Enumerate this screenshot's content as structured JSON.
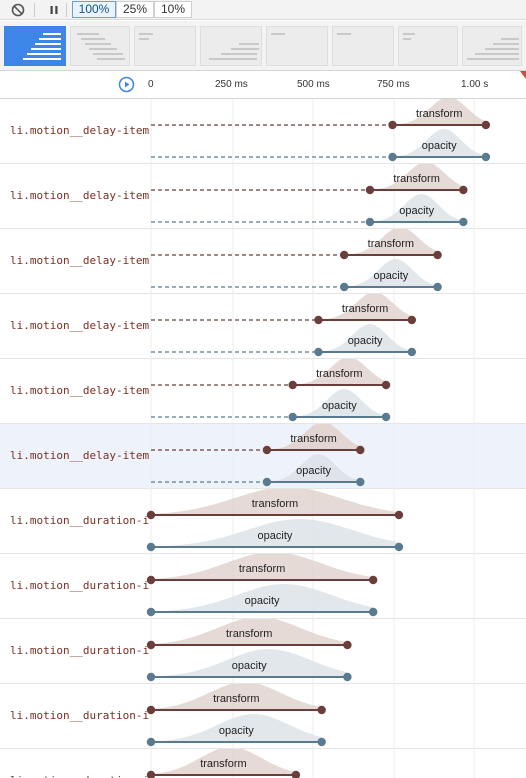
{
  "toolbar": {
    "clear_icon": "clear-icon",
    "pause_icon": "pause-icon",
    "speeds": [
      "100%",
      "25%",
      "10%"
    ],
    "selected_speed": "100%"
  },
  "thumbnails_count": 8,
  "timeline": {
    "ticks": [
      "0",
      "250 ms",
      "500 ms",
      "750 ms",
      "1.00 s"
    ],
    "replay_icon": "replay-icon",
    "current_time_marker": "playhead-marker"
  },
  "colors": {
    "transform": "#6a3e3a",
    "transform_fill": "#e1d3cf",
    "opacity": "#5a7a90",
    "opacity_fill": "#dce3e8",
    "selected_row_bg": "#eef3fb"
  },
  "rows": [
    {
      "name": "li.motion__delay-item",
      "type": "delay",
      "delay": 0.75,
      "end": 1.04,
      "selected": false
    },
    {
      "name": "li.motion__delay-item",
      "type": "delay",
      "delay": 0.68,
      "end": 0.97,
      "selected": false
    },
    {
      "name": "li.motion__delay-item",
      "type": "delay",
      "delay": 0.6,
      "end": 0.89,
      "selected": false
    },
    {
      "name": "li.motion__delay-item",
      "type": "delay",
      "delay": 0.52,
      "end": 0.81,
      "selected": false
    },
    {
      "name": "li.motion__delay-item",
      "type": "delay",
      "delay": 0.44,
      "end": 0.73,
      "selected": false
    },
    {
      "name": "li.motion__delay-item",
      "type": "delay",
      "delay": 0.36,
      "end": 0.65,
      "selected": true
    },
    {
      "name": "li.motion__duration-item",
      "type": "duration",
      "delay": 0,
      "end": 0.77,
      "selected": false
    },
    {
      "name": "li.motion__duration-item",
      "type": "duration",
      "delay": 0,
      "end": 0.69,
      "selected": false
    },
    {
      "name": "li.motion__duration-item",
      "type": "duration",
      "delay": 0,
      "end": 0.61,
      "selected": false
    },
    {
      "name": "li.motion__duration-item",
      "type": "duration",
      "delay": 0,
      "end": 0.53,
      "selected": false
    },
    {
      "name": "li.motion__duration-item",
      "type": "duration",
      "delay": 0,
      "end": 0.45,
      "selected": false
    }
  ],
  "anim_labels": {
    "transform": "transform",
    "opacity": "opacity"
  }
}
